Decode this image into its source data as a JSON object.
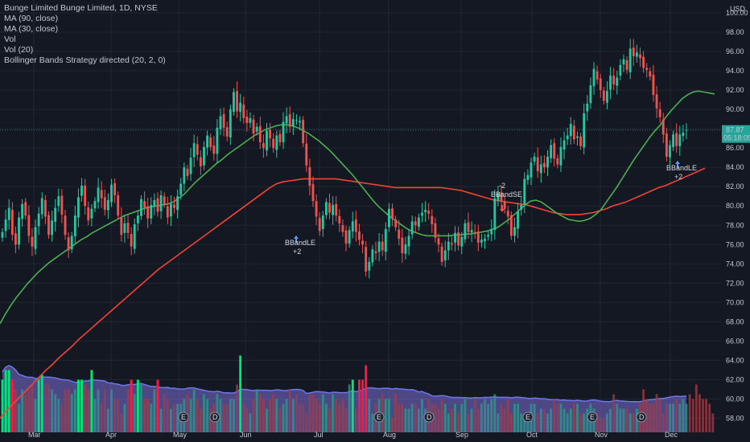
{
  "legend": {
    "title": "Bunge Limited Bunge Limited, 1D, NYSE",
    "lines": [
      "MA (90, close)",
      "MA (30, close)",
      "Vol",
      "Vol (20)",
      "Bollinger Bands Strategy directed (20, 2, 0)"
    ]
  },
  "currency": "USD",
  "price_tag": {
    "price": "87.87",
    "countdown": "05:18:05"
  },
  "colors": {
    "background": "#141823",
    "up": "#26c6a0",
    "down": "#ef5350",
    "ma90": "#f44336",
    "ma30": "#4caf50",
    "vol_up": "#00e676",
    "vol_down": "#ff1744",
    "vol_ma_fill": "#7e6fd8",
    "signal_arrow": "#5b9cf6",
    "grid": "#222632"
  },
  "chart_data": {
    "type": "candlestick",
    "title": "Bunge Limited Bunge Limited, 1D, NYSE",
    "y_axis": {
      "min": 57.5,
      "max": 100,
      "ticks": [
        "58.00",
        "60.00",
        "62.00",
        "64.00",
        "66.00",
        "68.00",
        "70.00",
        "72.00",
        "74.00",
        "76.00",
        "78.00",
        "80.00",
        "82.00",
        "84.00",
        "86.00",
        "88.00",
        "90.00",
        "92.00",
        "94.00",
        "96.00",
        "98.00",
        "100.00"
      ]
    },
    "x_axis": {
      "ticks": [
        "Mar",
        "Apr",
        "May",
        "Jun",
        "Jul",
        "Aug",
        "Sep",
        "Oct",
        "Nov",
        "Dec"
      ]
    },
    "closes": [
      77.3,
      78.6,
      79.8,
      77.0,
      76.0,
      78.8,
      80.2,
      79.0,
      76.9,
      75.8,
      77.8,
      79.2,
      80.8,
      78.9,
      77.0,
      78.5,
      79.8,
      81.0,
      79.1,
      77.0,
      75.4,
      76.9,
      79.0,
      80.9,
      82.1,
      80.0,
      78.5,
      79.7,
      80.5,
      81.9,
      80.8,
      79.6,
      80.6,
      82.2,
      81.1,
      79.0,
      77.0,
      78.2,
      77.2,
      75.8,
      78.1,
      79.0,
      80.7,
      79.8,
      78.7,
      80.1,
      80.6,
      79.4,
      81.1,
      80.2,
      78.8,
      80.2,
      79.8,
      81.0,
      82.3,
      84.0,
      83.1,
      85.0,
      86.5,
      85.3,
      84.1,
      86.1,
      87.3,
      86.1,
      85.4,
      88.1,
      89.3,
      88.1,
      87.2,
      90.0,
      91.8,
      89.8,
      90.7,
      89.1,
      88.6,
      89.1,
      87.5,
      88.2,
      86.6,
      86.0,
      87.8,
      87.0,
      86.0,
      87.3,
      86.6,
      88.7,
      89.3,
      88.2,
      89.0,
      88.9,
      88.8,
      86.5,
      84.2,
      82.1,
      80.5,
      78.9,
      77.4,
      79.0,
      80.4,
      79.3,
      80.1,
      79.0,
      78.2,
      77.3,
      76.1,
      77.5,
      78.4,
      77.3,
      76.5,
      76.0,
      73.2,
      74.2,
      75.5,
      75.1,
      76.3,
      75.4,
      77.6,
      79.7,
      78.7,
      77.8,
      76.6,
      75.1,
      76.0,
      76.9,
      78.4,
      78.0,
      78.8,
      79.3,
      79.6,
      79.2,
      78.1,
      76.7,
      76.0,
      74.2,
      75.4,
      76.3,
      76.0,
      77.2,
      75.9,
      76.8,
      78.2,
      77.3,
      77.5,
      77.2,
      76.2,
      76.5,
      76.6,
      77.0,
      77.6,
      80.8,
      81.3,
      80.5,
      79.7,
      78.9,
      76.9,
      77.8,
      79.4,
      80.1,
      82.8,
      83.2,
      84.5,
      85.1,
      83.6,
      84.3,
      84.0,
      85.1,
      86.3,
      84.9,
      84.3,
      86.1,
      86.8,
      87.3,
      88.5,
      86.9,
      87.2,
      86.2,
      89.6,
      90.6,
      92.5,
      94.2,
      93.1,
      92.0,
      90.9,
      91.9,
      93.5,
      92.6,
      93.3,
      94.6,
      95.2,
      94.1,
      96.3,
      95.5,
      95.9,
      95.3,
      94.3,
      94.1,
      93.4,
      91.5,
      90.1,
      89.2,
      87.4,
      85.1,
      86.3,
      87.4,
      86.2,
      87.4,
      87.6,
      87.87
    ],
    "volume": [
      62,
      63,
      63,
      62,
      61,
      59.5,
      61,
      60.5,
      61,
      61.5,
      60,
      62,
      62.5,
      61.5,
      61.5,
      61,
      60.5,
      60,
      59.5,
      61,
      61,
      60.5,
      61,
      62,
      62,
      61.5,
      61,
      63,
      60,
      61,
      59.5,
      61,
      59,
      61,
      60,
      60,
      58.5,
      59.5,
      61,
      62,
      60.5,
      62,
      61.5,
      60,
      60,
      59.5,
      61,
      62,
      59,
      60.5,
      60,
      59,
      59.5,
      59.5,
      59.5,
      60,
      60.5,
      60,
      61,
      60,
      59,
      60.5,
      60,
      59,
      59.5,
      60.5,
      60,
      59.5,
      59.5,
      60,
      60,
      61.5,
      64.5,
      59.5,
      59,
      58.5,
      60,
      61,
      60.5,
      60,
      59,
      60,
      60.5,
      60,
      59,
      59.5,
      60,
      61,
      60,
      60.5,
      59.5,
      59.5,
      58.5,
      60.5,
      60.5,
      60,
      59.5,
      60.5,
      59.5,
      59,
      60.5,
      60,
      59.5,
      60,
      59,
      61.5,
      62,
      59,
      62,
      62,
      63.5,
      60,
      58.5,
      59.5,
      60,
      60.5,
      60,
      60,
      58,
      60.5,
      59.5,
      59.5,
      59,
      59,
      59.5,
      59.5,
      59,
      60,
      59,
      60,
      59.5,
      59.5,
      59,
      60,
      59.5,
      58.5,
      59,
      59.5,
      58.5,
      59.5,
      60,
      58.5,
      59,
      60,
      59,
      59.5,
      60,
      59.5,
      60,
      60.5,
      58.5,
      59.5,
      59,
      60,
      58.5,
      59.5,
      59.5,
      58.5,
      58,
      58.5,
      59.5,
      59.5,
      58.5,
      59,
      59,
      58.5,
      59,
      60,
      59.5,
      59.5,
      59,
      58.5,
      59,
      59.5,
      59.5,
      58.5,
      58.5,
      59,
      59.5,
      59,
      58.5,
      58,
      58,
      58.5,
      59,
      60.5,
      59.5,
      59,
      59,
      59,
      58.5,
      58.5,
      59,
      59.5,
      61,
      60,
      59.5,
      59.5,
      60.5,
      60,
      58.5,
      59.5,
      59.5,
      59.5,
      60,
      59.5,
      60,
      59.5,
      60.5,
      60,
      61.5,
      60.5,
      60,
      60,
      59.5,
      58.5
    ],
    "ma30": [
      67.8,
      68.8,
      69.7,
      70.5,
      71.2,
      71.9,
      72.5,
      73.1,
      73.6,
      74.1,
      74.5,
      74.9,
      75.3,
      75.7,
      76.1,
      76.5,
      76.8,
      77.2,
      77.5,
      77.8,
      78.1,
      78.4,
      78.7,
      79.0,
      79.2,
      79.4,
      79.6,
      79.8,
      79.9,
      80.0,
      80.1,
      80.2,
      80.4,
      80.8,
      81.2,
      81.8,
      82.4,
      82.9,
      83.4,
      83.9,
      84.4,
      84.8,
      85.3,
      85.7,
      86.1,
      86.5,
      86.9,
      87.3,
      87.6,
      87.9,
      88.1,
      88.3,
      88.4,
      88.4,
      88.3,
      88.1,
      87.8,
      87.5,
      87.1,
      86.7,
      86.2,
      85.7,
      85.1,
      84.5,
      83.9,
      83.3,
      82.6,
      81.9,
      81.2,
      80.5,
      79.9,
      79.4,
      78.9,
      78.5,
      78.1,
      77.7,
      77.4,
      77.2,
      77.0,
      76.9,
      76.9,
      76.9,
      76.9,
      76.9,
      77.0,
      77.0,
      77.1,
      77.1,
      77.2,
      77.3,
      77.4,
      77.6,
      77.8,
      78.2,
      78.6,
      79.1,
      79.6,
      80.1,
      80.5,
      80.6,
      80.4,
      80.0,
      79.6,
      79.2,
      78.9,
      78.6,
      78.5,
      78.4,
      78.5,
      78.7,
      79.1,
      79.6,
      80.4,
      81.2,
      82.0,
      82.9,
      83.8,
      84.7,
      85.5,
      86.3,
      87.1,
      87.8,
      88.4,
      89.2,
      89.9,
      90.5,
      91.1,
      91.5,
      91.8,
      91.9,
      91.8,
      91.7,
      91.6
    ],
    "ma90": [
      58.0,
      58.8,
      59.5,
      60.2,
      60.9,
      61.6,
      62.3,
      63.0,
      63.6,
      64.3,
      64.9,
      65.5,
      66.2,
      66.8,
      67.4,
      68.0,
      68.6,
      69.2,
      69.8,
      70.4,
      71.0,
      71.6,
      72.2,
      72.8,
      73.4,
      73.9,
      74.4,
      74.9,
      75.4,
      75.9,
      76.4,
      76.9,
      77.4,
      77.9,
      78.4,
      78.9,
      79.4,
      79.9,
      80.4,
      80.9,
      81.4,
      81.9,
      82.3,
      82.5,
      82.6,
      82.7,
      82.8,
      82.8,
      82.8,
      82.8,
      82.8,
      82.8,
      82.7,
      82.6,
      82.5,
      82.4,
      82.3,
      82.2,
      82.1,
      82.0,
      81.9,
      81.9,
      81.9,
      81.9,
      81.9,
      81.9,
      81.9,
      81.9,
      81.8,
      81.7,
      81.6,
      81.4,
      81.2,
      81.0,
      80.8,
      80.6,
      80.5,
      80.4,
      80.3,
      80.2,
      80.1,
      79.9,
      79.7,
      79.5,
      79.3,
      79.2,
      79.1,
      79.1,
      79.1,
      79.2,
      79.3,
      79.5,
      79.7,
      80.0,
      80.2,
      80.4,
      80.7,
      81.0,
      81.3,
      81.6,
      81.9,
      82.1,
      82.4,
      82.7,
      83.0,
      83.3,
      83.6,
      83.9
    ],
    "signals": [
      {
        "label": "BBandLE",
        "qty": "+2",
        "direction": "long"
      },
      {
        "label": "BBandSE",
        "qty": "-2",
        "direction": "short"
      },
      {
        "label": "BBandLE",
        "qty": "+2",
        "direction": "long"
      }
    ]
  }
}
